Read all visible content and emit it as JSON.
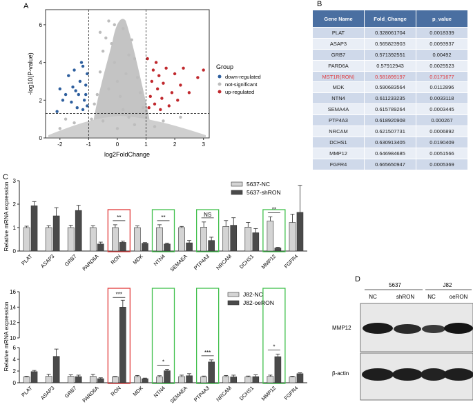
{
  "panels": {
    "a": "A",
    "b": "B",
    "c": "C",
    "d": "D"
  },
  "volcano": {
    "type": "scatter",
    "xlabel": "log2FoldChange",
    "ylabel": "-log10(P-value)",
    "xticks": [
      "-2",
      "-1",
      "0",
      "1",
      "2",
      "3"
    ],
    "yticks": [
      "0",
      "2",
      "4",
      "6"
    ],
    "xlim": [
      -2.5,
      3.2
    ],
    "ylim": [
      0,
      6.8
    ],
    "thresholds": {
      "fc": [
        -1,
        1
      ],
      "p": 1.3
    },
    "legend": {
      "title": "Group",
      "items": [
        {
          "label": "down-regulated",
          "color": "#2e5f9e"
        },
        {
          "label": "not-significant",
          "color": "#bdbdbd"
        },
        {
          "label": "up-regulated",
          "color": "#c0282d"
        }
      ]
    },
    "points": [
      {
        "x": -2.0,
        "y": 2.6,
        "g": "down"
      },
      {
        "x": -2.1,
        "y": 1.4,
        "g": "down"
      },
      {
        "x": -1.9,
        "y": 2.0,
        "g": "down"
      },
      {
        "x": -1.7,
        "y": 3.3,
        "g": "down"
      },
      {
        "x": -1.6,
        "y": 1.9,
        "g": "down"
      },
      {
        "x": -1.55,
        "y": 2.7,
        "g": "down"
      },
      {
        "x": -1.5,
        "y": 3.6,
        "g": "down"
      },
      {
        "x": -1.4,
        "y": 1.6,
        "g": "down"
      },
      {
        "x": -1.35,
        "y": 2.3,
        "g": "down"
      },
      {
        "x": -1.3,
        "y": 3.0,
        "g": "down"
      },
      {
        "x": -1.25,
        "y": 4.0,
        "g": "down"
      },
      {
        "x": -1.2,
        "y": 1.5,
        "g": "down"
      },
      {
        "x": -1.15,
        "y": 2.0,
        "g": "down"
      },
      {
        "x": -1.1,
        "y": 2.8,
        "g": "down"
      },
      {
        "x": -1.05,
        "y": 3.4,
        "g": "down"
      },
      {
        "x": -1.05,
        "y": 1.7,
        "g": "down"
      },
      {
        "x": -1.2,
        "y": 3.8,
        "g": "down"
      },
      {
        "x": -1.45,
        "y": 2.5,
        "g": "down"
      },
      {
        "x": -1.8,
        "y": 2.3,
        "g": "down"
      },
      {
        "x": -1.1,
        "y": 2.3,
        "g": "down"
      },
      {
        "x": 1.1,
        "y": 1.6,
        "g": "up"
      },
      {
        "x": 1.15,
        "y": 2.2,
        "g": "up"
      },
      {
        "x": 1.2,
        "y": 3.0,
        "g": "up"
      },
      {
        "x": 1.25,
        "y": 3.6,
        "g": "up"
      },
      {
        "x": 1.3,
        "y": 1.8,
        "g": "up"
      },
      {
        "x": 1.4,
        "y": 2.6,
        "g": "up"
      },
      {
        "x": 1.45,
        "y": 3.3,
        "g": "up"
      },
      {
        "x": 1.5,
        "y": 1.5,
        "g": "up"
      },
      {
        "x": 1.55,
        "y": 2.1,
        "g": "up"
      },
      {
        "x": 1.6,
        "y": 2.9,
        "g": "up"
      },
      {
        "x": 1.7,
        "y": 3.7,
        "g": "up"
      },
      {
        "x": 1.8,
        "y": 1.7,
        "g": "up"
      },
      {
        "x": 1.9,
        "y": 2.4,
        "g": "up"
      },
      {
        "x": 2.0,
        "y": 3.4,
        "g": "up"
      },
      {
        "x": 2.1,
        "y": 2.0,
        "g": "up"
      },
      {
        "x": 2.2,
        "y": 2.8,
        "g": "up"
      },
      {
        "x": 2.3,
        "y": 3.7,
        "g": "up"
      },
      {
        "x": 2.5,
        "y": 2.4,
        "g": "up"
      },
      {
        "x": 2.8,
        "y": 3.2,
        "g": "up"
      },
      {
        "x": 3.0,
        "y": 3.6,
        "g": "up"
      },
      {
        "x": 1.05,
        "y": 4.2,
        "g": "up"
      },
      {
        "x": 1.35,
        "y": 4.0,
        "g": "up"
      },
      {
        "x": -0.9,
        "y": 1.0,
        "g": "ns"
      },
      {
        "x": -0.7,
        "y": 2.3,
        "g": "ns"
      },
      {
        "x": -0.6,
        "y": 3.5,
        "g": "ns"
      },
      {
        "x": -0.5,
        "y": 4.6,
        "g": "ns"
      },
      {
        "x": -0.4,
        "y": 5.3,
        "g": "ns"
      },
      {
        "x": -0.3,
        "y": 6.2,
        "g": "ns"
      },
      {
        "x": -0.2,
        "y": 5.0,
        "g": "ns"
      },
      {
        "x": -0.1,
        "y": 4.0,
        "g": "ns"
      },
      {
        "x": 0.0,
        "y": 3.0,
        "g": "ns"
      },
      {
        "x": 0.1,
        "y": 2.2,
        "g": "ns"
      },
      {
        "x": 0.2,
        "y": 1.5,
        "g": "ns"
      },
      {
        "x": 0.3,
        "y": 3.4,
        "g": "ns"
      },
      {
        "x": 0.4,
        "y": 4.4,
        "g": "ns"
      },
      {
        "x": 0.5,
        "y": 5.2,
        "g": "ns"
      },
      {
        "x": 0.6,
        "y": 4.2,
        "g": "ns"
      },
      {
        "x": 0.7,
        "y": 3.2,
        "g": "ns"
      },
      {
        "x": 0.8,
        "y": 2.4,
        "g": "ns"
      },
      {
        "x": 0.9,
        "y": 1.6,
        "g": "ns"
      },
      {
        "x": -0.8,
        "y": 1.8,
        "g": "ns"
      },
      {
        "x": -0.3,
        "y": 2.6,
        "g": "ns"
      },
      {
        "x": 0.4,
        "y": 1.1,
        "g": "ns"
      },
      {
        "x": -0.5,
        "y": 0.9,
        "g": "ns"
      },
      {
        "x": 0.6,
        "y": 0.7,
        "g": "ns"
      },
      {
        "x": 0.0,
        "y": 0.5,
        "g": "ns"
      },
      {
        "x": -1.5,
        "y": 0.8,
        "g": "ns"
      },
      {
        "x": -1.8,
        "y": 1.0,
        "g": "ns"
      },
      {
        "x": 1.6,
        "y": 0.9,
        "g": "ns"
      },
      {
        "x": 2.2,
        "y": 1.1,
        "g": "ns"
      },
      {
        "x": -2.0,
        "y": 0.5,
        "g": "ns"
      },
      {
        "x": 1.3,
        "y": 0.6,
        "g": "ns"
      },
      {
        "x": -0.1,
        "y": 6.0,
        "g": "ns"
      },
      {
        "x": 0.2,
        "y": 5.8,
        "g": "ns"
      },
      {
        "x": -0.6,
        "y": 5.6,
        "g": "ns"
      }
    ]
  },
  "table": {
    "headers": [
      "Gene Name",
      "Fold_Change",
      "p_value"
    ],
    "rows": [
      {
        "gene": "PLAT",
        "fc": "0.328061704",
        "p": "0.0018339"
      },
      {
        "gene": "ASAP3",
        "fc": "0.565823903",
        "p": "0.0093937"
      },
      {
        "gene": "GRB7",
        "fc": "0.571392551",
        "p": "0.00492"
      },
      {
        "gene": "PARD6A",
        "fc": "0.57912943",
        "p": "0.0025523"
      },
      {
        "gene": "MST1R(RON)",
        "fc": "0.581899197",
        "p": "0.0171677",
        "highlight": true
      },
      {
        "gene": "MDK",
        "fc": "0.590683564",
        "p": "0.0112896"
      },
      {
        "gene": "NTN4",
        "fc": "0.611233235",
        "p": "0.0033118"
      },
      {
        "gene": "SEMA4A",
        "fc": "0.615789264",
        "p": "0.0003445"
      },
      {
        "gene": "PTP4A3",
        "fc": "0.618920908",
        "p": "0.000267"
      },
      {
        "gene": "NRCAM",
        "fc": "0.621507731",
        "p": "0.0006892"
      },
      {
        "gene": "DCHS1",
        "fc": "0.630913405",
        "p": "0.0190409"
      },
      {
        "gene": "MMP12",
        "fc": "0.646984685",
        "p": "0.0051566"
      },
      {
        "gene": "FGFR4",
        "fc": "0.665650947",
        "p": "0.0005369"
      }
    ]
  },
  "chart_data": [
    {
      "type": "bar",
      "title": "5637",
      "ylabel": "Relative mRNA expression",
      "categories": [
        "PLAT",
        "ASAP3",
        "GRB7",
        "PARD6A",
        "RON",
        "MDK",
        "NTN4",
        "SEMAEA",
        "PTP4A3",
        "NRCAM",
        "DCHS1",
        "MMP12",
        "FGFR4"
      ],
      "ylim": [
        0,
        3
      ],
      "yticks": [
        "0",
        "1",
        "2",
        "3"
      ],
      "series": [
        {
          "name": "5637-NC",
          "color": "#d4d4d4",
          "values": [
            1.0,
            1.0,
            1.0,
            1.0,
            1.0,
            1.0,
            1.0,
            1.0,
            1.02,
            1.05,
            1.02,
            1.28,
            1.22
          ],
          "errors": [
            0.06,
            0.08,
            0.1,
            0.08,
            0.12,
            0.07,
            0.12,
            0.05,
            0.22,
            0.25,
            0.2,
            0.18,
            0.35
          ]
        },
        {
          "name": "5637-shRON",
          "color": "#4a4a4a",
          "values": [
            1.93,
            1.5,
            1.73,
            0.3,
            0.37,
            0.33,
            0.3,
            0.35,
            0.45,
            1.1,
            0.78,
            0.13,
            1.65
          ],
          "errors": [
            0.18,
            0.35,
            0.22,
            0.08,
            0.05,
            0.03,
            0.04,
            0.1,
            0.14,
            0.32,
            0.18,
            0.03,
            1.15
          ]
        }
      ],
      "boxes": [
        {
          "index": 4,
          "color": "red"
        },
        {
          "index": 6,
          "color": "green"
        },
        {
          "index": 8,
          "color": "green"
        },
        {
          "index": 11,
          "color": "green"
        }
      ],
      "annotations": [
        {
          "index": 4,
          "text": "**"
        },
        {
          "index": 6,
          "text": "**"
        },
        {
          "index": 8,
          "text": "NS"
        },
        {
          "index": 11,
          "text": "**"
        }
      ]
    },
    {
      "type": "bar",
      "title": "J82",
      "ylabel": "Relative mRNA expression",
      "categories": [
        "PLAT",
        "ASAP3",
        "GRB7",
        "PARD6A",
        "RON",
        "MDK",
        "NTN4",
        "SEMAEA",
        "PTP4A3",
        "NRCAM",
        "DCHS1",
        "MMP12",
        "FGFR4"
      ],
      "axis_break": {
        "lower": [
          0,
          6
        ],
        "upper": [
          10,
          16
        ]
      },
      "yticks_lower": [
        "0",
        "2",
        "4",
        "6"
      ],
      "yticks_upper": [
        "10",
        "12",
        "14",
        "16"
      ],
      "series": [
        {
          "name": "J82-NC",
          "color": "#d4d4d4",
          "values": [
            1.0,
            1.1,
            1.1,
            1.1,
            1.0,
            1.05,
            1.0,
            1.05,
            1.0,
            1.05,
            1.0,
            1.1,
            1.0
          ],
          "errors": [
            0.1,
            0.35,
            0.25,
            0.35,
            0.08,
            0.2,
            0.2,
            0.25,
            0.15,
            0.2,
            0.15,
            0.2,
            0.1
          ]
        },
        {
          "name": "J82-oeRON",
          "color": "#4a4a4a",
          "values": [
            1.9,
            4.5,
            1.05,
            0.7,
            14.0,
            0.7,
            2.05,
            1.2,
            3.55,
            1.0,
            1.05,
            4.45,
            1.55
          ],
          "errors": [
            0.2,
            1.25,
            0.25,
            0.15,
            0.9,
            0.1,
            0.25,
            0.35,
            0.35,
            0.3,
            0.3,
            0.45,
            0.15
          ]
        }
      ],
      "boxes": [
        {
          "index": 4,
          "color": "red"
        },
        {
          "index": 6,
          "color": "green"
        },
        {
          "index": 8,
          "color": "green"
        },
        {
          "index": 11,
          "color": "green"
        }
      ],
      "annotations": [
        {
          "index": 4,
          "text": "***"
        },
        {
          "index": 6,
          "text": "*"
        },
        {
          "index": 8,
          "text": "***"
        },
        {
          "index": 11,
          "text": "*"
        }
      ]
    }
  ],
  "blot": {
    "groups": [
      "5637",
      "J82"
    ],
    "lanes": [
      "NC",
      "shRON",
      "NC",
      "oeRON"
    ],
    "proteins": [
      "MMP12",
      "β-actin"
    ]
  }
}
